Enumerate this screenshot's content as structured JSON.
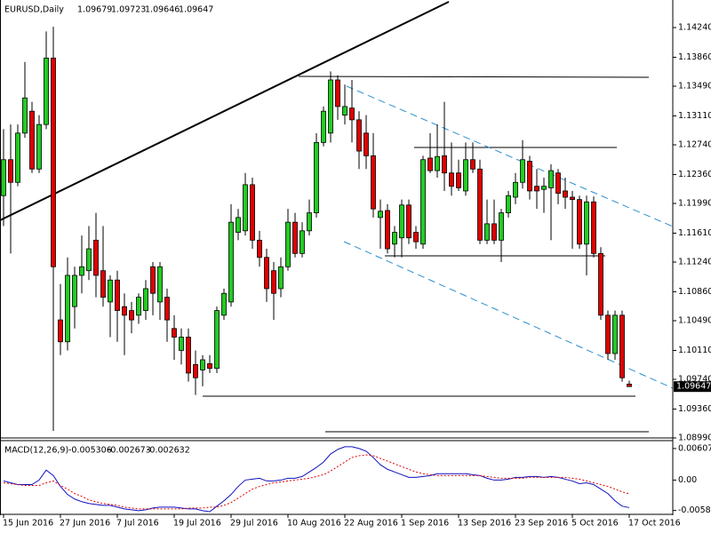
{
  "chart_data": [
    {
      "type": "candlestick",
      "symbol": "EURUSD,Daily",
      "categories": [
        "15 Jun 2016",
        null,
        null,
        null,
        null,
        null,
        null,
        null,
        "27 Jun 2016",
        null,
        null,
        null,
        null,
        null,
        null,
        null,
        "7 Jul 2016",
        null,
        null,
        null,
        null,
        null,
        null,
        null,
        "19 Jul 2016",
        null,
        null,
        null,
        null,
        null,
        null,
        null,
        "29 Jul 2016",
        null,
        null,
        null,
        null,
        null,
        null,
        null,
        "10 Aug 2016",
        null,
        null,
        null,
        null,
        null,
        null,
        null,
        "22 Aug 2016",
        null,
        null,
        null,
        null,
        null,
        null,
        null,
        "1 Sep 2016",
        null,
        null,
        null,
        null,
        null,
        null,
        null,
        "13 Sep 2016",
        null,
        null,
        null,
        null,
        null,
        null,
        null,
        "23 Sep 2016",
        null,
        null,
        null,
        null,
        null,
        null,
        null,
        "5 Oct 2016",
        null,
        null,
        null,
        null,
        null,
        null,
        null,
        "17 Oct 2016"
      ],
      "open": [
        1.1209,
        1.1255,
        1.1226,
        1.1289,
        1.1317,
        1.1243,
        1.13,
        1.1385,
        1.105,
        1.1022,
        1.1067,
        1.1107,
        1.1113,
        1.1152,
        1.1113,
        1.1073,
        1.1101,
        1.1067,
        1.1062,
        1.1056,
        1.1062,
        1.1118,
        1.1073,
        1.1079,
        1.1039,
        1.1011,
        1.1028,
        1.0993,
        1.0986,
        1.0994,
        1.0988,
        1.1056,
        1.1073,
        1.1162,
        1.1164,
        1.1223,
        1.1152,
        1.113,
        1.1113,
        1.109,
        1.1118,
        1.1175,
        1.1135,
        1.1164,
        1.1187,
        1.1277,
        1.1289,
        1.1357,
        1.1312,
        1.1321,
        1.1306,
        1.1289,
        1.126,
        1.1181,
        1.119,
        1.1147,
        1.1155,
        1.1197,
        1.1162,
        1.1147,
        1.1257,
        1.1241,
        1.126,
        1.1238,
        1.1238,
        1.1215,
        1.1255,
        1.1243,
        1.1152,
        1.1173,
        1.1152,
        1.1187,
        1.1207,
        1.1226,
        1.1253,
        1.1221,
        1.1217,
        1.1219,
        1.1238,
        1.1215,
        1.1207,
        1.1204,
        1.1147,
        1.1201,
        1.1135,
        1.1056,
        1.1007,
        1.1056,
        1.09679
      ],
      "high": [
        1.1294,
        1.13,
        1.13,
        1.138,
        1.1329,
        1.1312,
        1.1419,
        1.1425,
        1.1096,
        1.113,
        1.1118,
        1.1158,
        1.117,
        1.1187,
        1.117,
        1.1107,
        1.1113,
        1.1084,
        1.1073,
        1.1084,
        1.1101,
        1.1124,
        1.1124,
        1.109,
        1.1056,
        1.1039,
        1.1039,
        1.1011,
        1.1005,
        1.1005,
        1.1067,
        1.109,
        1.1198,
        1.1192,
        1.1238,
        1.1232,
        1.1164,
        1.1141,
        1.1124,
        1.113,
        1.1192,
        1.1187,
        1.1175,
        1.1204,
        1.1289,
        1.1323,
        1.1368,
        1.1363,
        1.1351,
        1.1357,
        1.1317,
        1.1312,
        1.1289,
        1.1204,
        1.1198,
        1.117,
        1.1204,
        1.1204,
        1.117,
        1.126,
        1.1289,
        1.13,
        1.1329,
        1.1277,
        1.1255,
        1.1277,
        1.1277,
        1.1255,
        1.1204,
        1.1204,
        1.1192,
        1.1215,
        1.1238,
        1.128,
        1.126,
        1.1243,
        1.1232,
        1.1249,
        1.1243,
        1.1232,
        1.1215,
        1.1209,
        1.1209,
        1.1208,
        1.1143,
        1.1062,
        1.1062,
        1.1062,
        1.09723
      ],
      "low": [
        1.117,
        1.1135,
        1.1221,
        1.1283,
        1.1238,
        1.1238,
        1.1294,
        1.0908,
        1.1005,
        1.1011,
        1.1039,
        1.1084,
        1.1101,
        1.1079,
        1.1067,
        1.1028,
        1.1022,
        1.1005,
        1.1033,
        1.1045,
        1.105,
        1.1056,
        1.105,
        1.1022,
        1.0999,
        1.0993,
        1.0971,
        1.0954,
        1.0965,
        1.0982,
        1.0982,
        1.105,
        1.1067,
        1.1152,
        1.1158,
        1.1141,
        1.1118,
        1.1073,
        1.105,
        1.1079,
        1.1113,
        1.113,
        1.113,
        1.1158,
        1.1181,
        1.1272,
        1.1277,
        1.1306,
        1.13,
        1.1277,
        1.1243,
        1.1243,
        1.1181,
        1.1141,
        1.1135,
        1.113,
        1.113,
        1.1147,
        1.1141,
        1.1141,
        1.1238,
        1.1232,
        1.1215,
        1.1209,
        1.1215,
        1.1209,
        1.1238,
        1.1147,
        1.1147,
        1.1147,
        1.1124,
        1.1181,
        1.1198,
        1.1218,
        1.1204,
        1.1192,
        1.1187,
        1.1152,
        1.1198,
        1.1192,
        1.1141,
        1.1141,
        1.1107,
        1.113,
        1.105,
        1.0999,
        1.0999,
        1.0971,
        1.09646
      ],
      "close": [
        1.1255,
        1.1226,
        1.1289,
        1.1334,
        1.1243,
        1.13,
        1.1385,
        1.1118,
        1.1022,
        1.1107,
        1.1107,
        1.1118,
        1.1141,
        1.1107,
        1.1079,
        1.1101,
        1.1062,
        1.1056,
        1.105,
        1.1079,
        1.109,
        1.1084,
        1.1118,
        1.105,
        1.1028,
        1.1028,
        1.0982,
        1.0976,
        1.0999,
        1.0988,
        1.1062,
        1.1084,
        1.1175,
        1.1181,
        1.1223,
        1.1152,
        1.113,
        1.109,
        1.1084,
        1.1118,
        1.1175,
        1.1135,
        1.1164,
        1.1187,
        1.1277,
        1.1317,
        1.1357,
        1.1323,
        1.1323,
        1.1306,
        1.1266,
        1.126,
        1.1192,
        1.1189,
        1.1141,
        1.1162,
        1.1197,
        1.1155,
        1.115,
        1.1255,
        1.1241,
        1.1259,
        1.1238,
        1.1221,
        1.1219,
        1.1255,
        1.1243,
        1.1152,
        1.1173,
        1.1152,
        1.1187,
        1.1209,
        1.1226,
        1.1255,
        1.1215,
        1.1215,
        1.1221,
        1.1241,
        1.1212,
        1.1207,
        1.1204,
        1.1147,
        1.1201,
        1.1135,
        1.1056,
        1.1007,
        1.1056,
        1.0976,
        1.09647
      ],
      "up_color": "#22cc22",
      "down_color": "#e00000",
      "ylim": [
        1.0899,
        1.1457
      ],
      "yticks": [
        {
          "value": 1.1424,
          "label": "1.14240"
        },
        {
          "value": 1.1386,
          "label": "1.13860"
        },
        {
          "value": 1.1349,
          "label": "1.13490"
        },
        {
          "value": 1.1311,
          "label": "1.13110"
        },
        {
          "value": 1.1274,
          "label": "1.12740"
        },
        {
          "value": 1.1236,
          "label": "1.12360"
        },
        {
          "value": 1.1199,
          "label": "1.11990"
        },
        {
          "value": 1.1161,
          "label": "1.11610"
        },
        {
          "value": 1.1124,
          "label": "1.11240"
        },
        {
          "value": 1.1086,
          "label": "1.10860"
        },
        {
          "value": 1.1049,
          "label": "1.10490"
        },
        {
          "value": 1.1011,
          "label": "1.10110"
        },
        {
          "value": 1.0974,
          "label": "1.09740"
        },
        {
          "value": 1.0936,
          "label": "1.09360"
        },
        {
          "value": 1.0899,
          "label": "1.08990"
        }
      ]
    },
    {
      "type": "line",
      "title": "MACD(12,26,9)",
      "readout": [
        -0.005306,
        -0.002673,
        -0.002632
      ],
      "ylim": [
        -0.0066,
        0.0076
      ],
      "yticks": [
        0.006077,
        {
          "value": 0,
          "label": "0.00"
        },
        -0.005858
      ],
      "series": [
        {
          "color": "#1010c0",
          "style": "solid",
          "values": [
            -0.00017,
            -0.00052,
            -0.00087,
            -0.00087,
            -0.00087,
            0,
            0.00191,
            0.00087,
            -0.00122,
            -0.00278,
            -0.00365,
            -0.00417,
            -0.00451,
            -0.00469,
            -0.00486,
            -0.00486,
            -0.00521,
            -0.00556,
            -0.00573,
            -0.0059,
            -0.00573,
            -0.00538,
            -0.00521,
            -0.00521,
            -0.00521,
            -0.00538,
            -0.00556,
            -0.00556,
            -0.0059,
            -0.00608,
            -0.00503,
            -0.00399,
            -0.00278,
            -0.00122,
            0,
            0.00017,
            0.00035,
            -0.00017,
            -0.00017,
            0,
            0.00035,
            0.00035,
            0.00069,
            0.00156,
            0.00243,
            0.00347,
            0.00503,
            0.0059,
            0.00642,
            0.00642,
            0.00608,
            0.00556,
            0.00434,
            0.00295,
            0.00208,
            0.00156,
            0.00104,
            0.00052,
            0.00052,
            0.00069,
            0.00087,
            0.00122,
            0.00122,
            0.00122,
            0.00122,
            0.00122,
            0.00104,
            0.00087,
            0.00035,
            0,
            0,
            0.00017,
            0.00052,
            0.00052,
            0.00069,
            0.00069,
            0.00052,
            0.00069,
            0.00052,
            0.00017,
            -0.00017,
            -0.00069,
            -0.00052,
            -0.00087,
            -0.00174,
            -0.0026,
            -0.00399,
            -0.00503,
            -0.005306
          ]
        },
        {
          "color": "#e00000",
          "style": "dotted",
          "values": [
            -0.00052,
            -0.00069,
            -0.00087,
            -0.00104,
            -0.00104,
            -0.00104,
            -0.00052,
            -0.00017,
            -0.00104,
            -0.00174,
            -0.0026,
            -0.00313,
            -0.00382,
            -0.00417,
            -0.00451,
            -0.00469,
            -0.00486,
            -0.00521,
            -0.00538,
            -0.00556,
            -0.00556,
            -0.00556,
            -0.00556,
            -0.00556,
            -0.00556,
            -0.00556,
            -0.00538,
            -0.00538,
            -0.00538,
            -0.00521,
            -0.00521,
            -0.00486,
            -0.00434,
            -0.00347,
            -0.0026,
            -0.00174,
            -0.00122,
            -0.00087,
            -0.00052,
            -0.00035,
            -0.00017,
            0,
            0.00017,
            0.00035,
            0.00069,
            0.00104,
            0.00174,
            0.0026,
            0.00347,
            0.00434,
            0.00469,
            0.00486,
            0.00469,
            0.00417,
            0.00365,
            0.00313,
            0.0026,
            0.00208,
            0.00156,
            0.00122,
            0.00104,
            0.00087,
            0.00087,
            0.00087,
            0.00087,
            0.00087,
            0.00087,
            0.00087,
            0.00069,
            0.00052,
            0.00035,
            0.00035,
            0.00035,
            0.00035,
            0.00052,
            0.00052,
            0.00052,
            0.00052,
            0.00052,
            0.00052,
            0.00035,
            0.00017,
            -0.00017,
            -0.00052,
            -0.00087,
            -0.00122,
            -0.00174,
            -0.00226,
            -0.002673
          ]
        }
      ]
    }
  ]
}
